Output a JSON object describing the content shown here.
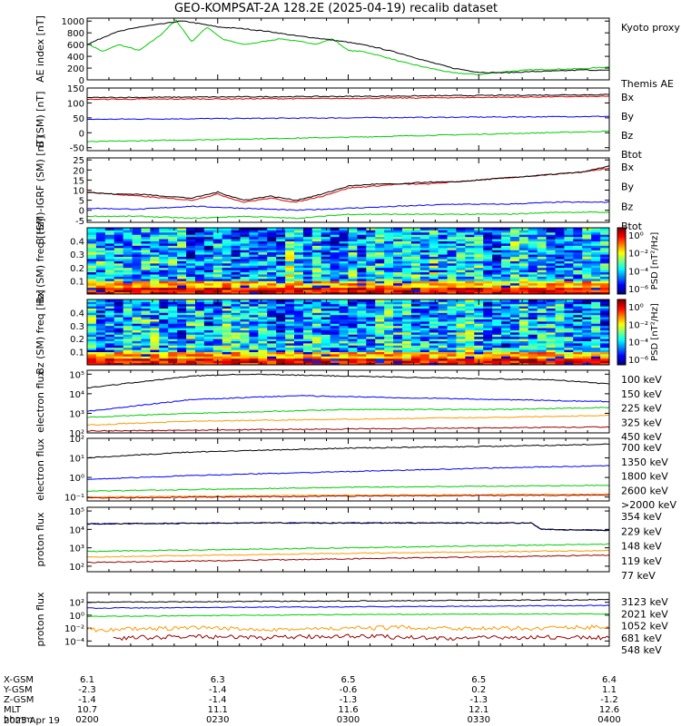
{
  "title": "GEO-KOMPSAT-2A 128.2E (2025-04-19) recalib dataset",
  "colors": {
    "black": "#000000",
    "green": "#00cc00",
    "blue": "#0000ff",
    "red": "#dd0000",
    "orange": "#ff9900",
    "darkred": "#990000",
    "lime": "#33cc33",
    "lightblue": "#1f5fff"
  },
  "chart_data": [
    {
      "type": "line",
      "id": "ae",
      "ylabel": "AE index [nT]",
      "yticks": [
        "0",
        "200",
        "400",
        "600",
        "800",
        "1000"
      ],
      "ylim": [
        0,
        1050
      ],
      "series": [
        {
          "name": "Kyoto proxy AE",
          "color": "#00cc00",
          "x": [
            0,
            0.03,
            0.06,
            0.1,
            0.14,
            0.17,
            0.2,
            0.23,
            0.26,
            0.3,
            0.33,
            0.37,
            0.4,
            0.44,
            0.47,
            0.5,
            0.53,
            0.57,
            0.6,
            0.65,
            0.7,
            0.75,
            0.8,
            0.85,
            0.9,
            0.95,
            1
          ],
          "values": [
            620,
            480,
            600,
            500,
            760,
            1020,
            650,
            900,
            690,
            600,
            640,
            700,
            660,
            610,
            700,
            500,
            480,
            390,
            310,
            210,
            120,
            90,
            140,
            170,
            180,
            190,
            220
          ]
        },
        {
          "name": "Themis AE",
          "color": "#000000",
          "x": [
            0,
            0.05,
            0.1,
            0.15,
            0.18,
            0.2,
            0.25,
            0.3,
            0.35,
            0.4,
            0.45,
            0.5,
            0.55,
            0.6,
            0.65,
            0.7,
            0.75,
            0.8,
            0.85,
            0.9,
            0.95,
            1
          ],
          "values": [
            600,
            800,
            900,
            960,
            1000,
            980,
            900,
            870,
            820,
            750,
            700,
            640,
            560,
            450,
            320,
            200,
            130,
            120,
            140,
            150,
            170,
            160
          ]
        }
      ]
    },
    {
      "type": "line",
      "id": "bsm",
      "ylabel": "B (SM) [nT]",
      "yticks": [
        "-50",
        "0",
        "50",
        "100",
        "150"
      ],
      "ylim": [
        -60,
        150
      ],
      "series": [
        {
          "name": "Bx",
          "color": "#0000ff",
          "x": [
            0,
            0.5,
            1
          ],
          "values": [
            45,
            50,
            55
          ]
        },
        {
          "name": "By",
          "color": "#00cc00",
          "x": [
            0,
            0.5,
            1
          ],
          "values": [
            -30,
            -15,
            5
          ]
        },
        {
          "name": "Bz",
          "color": "#dd0000",
          "x": [
            0,
            0.5,
            1
          ],
          "values": [
            112,
            115,
            122
          ]
        },
        {
          "name": "Btot",
          "color": "#000000",
          "x": [
            0,
            0.5,
            1
          ],
          "values": [
            118,
            122,
            128
          ]
        }
      ]
    },
    {
      "type": "line",
      "id": "bigrf",
      "ylabel": "B (SM)-IGRF (SM) [nT]",
      "yticks": [
        "-5",
        "0",
        "5",
        "10",
        "15",
        "20",
        "25"
      ],
      "ylim": [
        -6,
        26
      ],
      "series": [
        {
          "name": "Bx",
          "color": "#0000ff",
          "x": [
            0,
            0.1,
            0.2,
            0.3,
            0.4,
            0.5,
            0.6,
            0.7,
            0.8,
            0.9,
            1
          ],
          "values": [
            1,
            0.5,
            2,
            1,
            0,
            1,
            2,
            3,
            3,
            4,
            4
          ]
        },
        {
          "name": "By",
          "color": "#00cc00",
          "x": [
            0,
            0.1,
            0.2,
            0.3,
            0.4,
            0.5,
            0.6,
            0.7,
            0.8,
            0.9,
            1
          ],
          "values": [
            -3,
            -3,
            -4,
            -3,
            -4,
            -2,
            -2,
            -2,
            -2,
            -1,
            -1
          ]
        },
        {
          "name": "Bz",
          "color": "#dd0000",
          "x": [
            0,
            0.05,
            0.1,
            0.15,
            0.2,
            0.25,
            0.3,
            0.35,
            0.4,
            0.45,
            0.5,
            0.55,
            0.6,
            0.65,
            0.7,
            0.75,
            0.8,
            0.85,
            0.9,
            0.95,
            1
          ],
          "values": [
            9,
            8,
            7,
            6,
            5,
            8,
            4,
            6,
            4,
            7,
            11,
            12,
            13,
            13,
            14,
            15,
            16,
            17,
            18,
            19,
            21
          ]
        },
        {
          "name": "Btot",
          "color": "#000000",
          "x": [
            0,
            0.05,
            0.1,
            0.15,
            0.2,
            0.25,
            0.3,
            0.35,
            0.4,
            0.45,
            0.5,
            0.55,
            0.6,
            0.65,
            0.7,
            0.75,
            0.8,
            0.85,
            0.9,
            0.95,
            1
          ],
          "values": [
            9,
            8,
            8,
            7,
            6,
            9,
            5,
            7,
            5,
            8,
            12,
            13,
            13,
            14,
            14,
            15,
            16,
            17,
            18,
            19,
            22
          ]
        }
      ]
    },
    {
      "type": "heatmap",
      "id": "bxpsd",
      "ylabel": "Bx (SM) freq [Hz]",
      "yticks": [
        "0.1",
        "0.2",
        "0.3",
        "0.4"
      ],
      "ylim": [
        0.0,
        0.5
      ],
      "cbar_label": "PSD [nT²/Hz]",
      "cbar_ticks": [
        "10⁰",
        "10⁻²",
        "10⁻⁴",
        "10⁻⁶"
      ]
    },
    {
      "type": "heatmap",
      "id": "bzpsd",
      "ylabel": "Bz (SM) freq [Hz]",
      "yticks": [
        "0.1",
        "0.2",
        "0.3",
        "0.4"
      ],
      "ylim": [
        0.0,
        0.5
      ],
      "cbar_label": "PSD [nT²/Hz]",
      "cbar_ticks": [
        "10⁰",
        "10⁻²",
        "10⁻⁴",
        "10⁻⁶"
      ]
    },
    {
      "type": "line",
      "id": "eflux1",
      "log": true,
      "ylabel": "electron flux",
      "yticks": [
        "10²",
        "10³",
        "10⁴",
        "10⁵"
      ],
      "ylim": [
        2,
        5.2
      ],
      "series": [
        {
          "name": "100 keV",
          "color": "#000000",
          "x": [
            0,
            0.1,
            0.2,
            0.3,
            0.5,
            0.7,
            0.9,
            1
          ],
          "values": [
            4.3,
            4.6,
            4.9,
            5.0,
            4.9,
            4.8,
            4.7,
            4.5
          ]
        },
        {
          "name": "150 keV",
          "color": "#0000ff",
          "x": [
            0,
            0.1,
            0.2,
            0.4,
            0.6,
            0.8,
            1
          ],
          "values": [
            3.1,
            3.4,
            3.7,
            3.9,
            3.8,
            3.7,
            3.6
          ]
        },
        {
          "name": "225 keV",
          "color": "#00cc00",
          "x": [
            0,
            0.2,
            0.5,
            0.8,
            1
          ],
          "values": [
            2.8,
            3.0,
            3.2,
            3.2,
            3.3
          ]
        },
        {
          "name": "325 keV",
          "color": "#ff9900",
          "x": [
            0,
            0.2,
            0.5,
            0.8,
            1
          ],
          "values": [
            2.4,
            2.6,
            2.7,
            2.8,
            2.9
          ]
        },
        {
          "name": "450 keV",
          "color": "#990000",
          "x": [
            0,
            0.5,
            1
          ],
          "values": [
            2.1,
            2.2,
            2.3
          ]
        }
      ]
    },
    {
      "type": "line",
      "id": "eflux2",
      "log": true,
      "ylabel": "electron flux",
      "yticks": [
        "10⁻¹",
        "10⁰",
        "10¹",
        "10²"
      ],
      "ylim": [
        -1.2,
        2
      ],
      "series": [
        {
          "name": "700 keV",
          "color": "#000000",
          "x": [
            0,
            0.2,
            0.5,
            0.8,
            1
          ],
          "values": [
            1.0,
            1.3,
            1.5,
            1.6,
            1.7
          ]
        },
        {
          "name": "1350 keV",
          "color": "#0000ff",
          "x": [
            0,
            0.2,
            0.5,
            0.8,
            1
          ],
          "values": [
            -0.1,
            0.1,
            0.3,
            0.5,
            0.6
          ]
        },
        {
          "name": "1800 keV",
          "color": "#00cc00",
          "x": [
            0,
            0.5,
            1
          ],
          "values": [
            -0.7,
            -0.5,
            -0.4
          ]
        },
        {
          "name": "2600 keV",
          "color": "#ff9900",
          "x": [
            0,
            0.5,
            1
          ],
          "values": [
            -1.0,
            -0.9,
            -0.85
          ]
        },
        {
          "name": ">2000 keV",
          "color": "#990000",
          "x": [
            0,
            0.5,
            1
          ],
          "values": [
            -1.05,
            -0.95,
            -0.9
          ]
        }
      ]
    },
    {
      "type": "line",
      "id": "pflux1",
      "log": true,
      "ylabel": "proton flux",
      "yticks": [
        "10²",
        "10³",
        "10⁴",
        "10⁵"
      ],
      "ylim": [
        1.7,
        5.2
      ],
      "series": [
        {
          "name": "354 keV",
          "color": "#990000",
          "x": [
            0,
            0.5,
            1
          ],
          "values": [
            2.2,
            2.4,
            2.6
          ]
        },
        {
          "name": "229 keV",
          "color": "#ff9900",
          "x": [
            0,
            0.5,
            1
          ],
          "values": [
            2.5,
            2.7,
            2.85
          ]
        },
        {
          "name": "148 keV",
          "color": "#00cc00",
          "x": [
            0,
            0.5,
            1
          ],
          "values": [
            2.8,
            3.0,
            3.2
          ]
        },
        {
          "name": "119 keV",
          "color": "#0000ff",
          "x": [
            0,
            0.3,
            0.6,
            0.85,
            0.87,
            1
          ],
          "values": [
            4.3,
            4.35,
            4.35,
            4.35,
            4.0,
            3.95
          ]
        },
        {
          "name": "77 keV",
          "color": "#000000",
          "x": [
            0,
            0.3,
            0.6,
            0.85,
            0.87,
            1
          ],
          "values": [
            4.3,
            4.35,
            4.35,
            4.35,
            4.0,
            3.95
          ]
        }
      ]
    },
    {
      "type": "line",
      "id": "pflux2",
      "log": true,
      "ylabel": "proton flux",
      "yticks": [
        "10⁻⁴",
        "10⁻²",
        "10⁰",
        "10²"
      ],
      "ylim": [
        -4.8,
        3.5
      ],
      "series": [
        {
          "name": "3123 keV",
          "color": "#990000",
          "x": [
            0.05,
            0.2,
            0.35,
            0.5,
            0.7,
            0.85,
            1
          ],
          "values": [
            -3.6,
            -3.3,
            -3.5,
            -3.2,
            -3.6,
            -3.4,
            -3.5
          ]
        },
        {
          "name": "2021 keV",
          "color": "#ff9900",
          "x": [
            0,
            0.2,
            0.4,
            0.6,
            0.8,
            1
          ],
          "values": [
            -2.3,
            -2.0,
            -2.2,
            -1.9,
            -2.1,
            -1.8
          ]
        },
        {
          "name": "1052 keV",
          "color": "#00cc00",
          "x": [
            0,
            0.5,
            1
          ],
          "values": [
            -0.2,
            0.1,
            0.2
          ]
        },
        {
          "name": "681 keV",
          "color": "#0000ff",
          "x": [
            0,
            0.5,
            1
          ],
          "values": [
            1.1,
            1.3,
            1.5
          ]
        },
        {
          "name": "548 keV",
          "color": "#000000",
          "x": [
            0,
            0.5,
            1
          ],
          "values": [
            2.0,
            2.2,
            2.4
          ]
        }
      ]
    }
  ],
  "xaxis": {
    "row_labels": [
      "X-GSM",
      "Y-GSM",
      "Z-GSM",
      "MLT",
      "hhmm"
    ],
    "date": "2025 Apr 19",
    "columns": [
      {
        "values": [
          "6.1",
          "-2.3",
          "-1.4",
          "10.7",
          "0200"
        ]
      },
      {
        "values": [
          "6.3",
          "-1.4",
          "-1.4",
          "11.1",
          "0230"
        ]
      },
      {
        "values": [
          "6.5",
          "-0.6",
          "-1.3",
          "11.6",
          "0300"
        ]
      },
      {
        "values": [
          "6.5",
          "0.2",
          "-1.3",
          "12.1",
          "0330"
        ]
      },
      {
        "values": [
          "6.4",
          "1.1",
          "-1.2",
          "12.6",
          "0400"
        ]
      }
    ]
  }
}
